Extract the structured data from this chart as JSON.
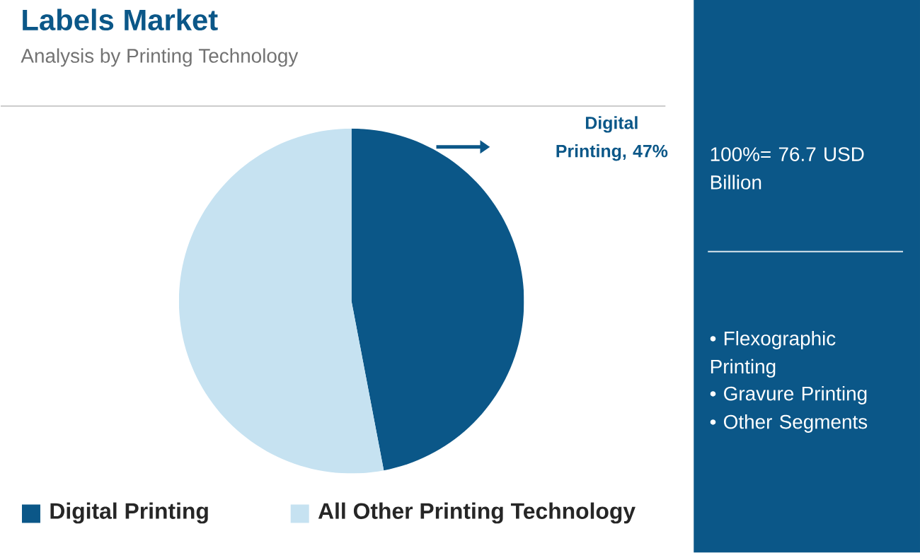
{
  "chart_data": {
    "type": "pie",
    "title": "Labels Market",
    "subtitle": "Analysis by Printing Technology",
    "categories": [
      "Digital Printing",
      "All Other Printing Technology"
    ],
    "values": [
      47,
      53
    ],
    "colors": [
      "#0b5788",
      "#c6e2f1"
    ],
    "value_labels": [
      "Digital Printing, 47%",
      null
    ],
    "legend": "bottom",
    "annotations": [
      "100%= 76.7 USD Billion",
      "• Flexographic Printing",
      "• Gravure Printing",
      "• Other Segments"
    ]
  }
}
